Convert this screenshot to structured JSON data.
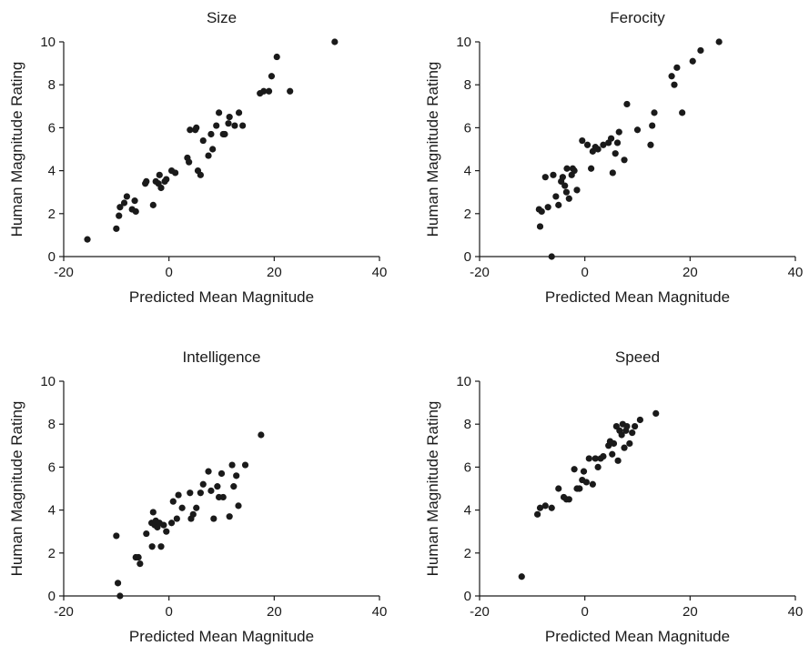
{
  "chart_data": [
    {
      "type": "scatter",
      "title": "Size",
      "xlabel": "Predicted Mean Magnitude",
      "ylabel": "Human Magnitude Rating",
      "xlim": [
        -20,
        40
      ],
      "ylim": [
        0,
        10
      ],
      "xticks": [
        "-20",
        "0",
        "20",
        "40"
      ],
      "yticks": [
        "0",
        "2",
        "4",
        "6",
        "8",
        "10"
      ],
      "grid": false,
      "marker_color": "#1a1a1a",
      "series": [
        {
          "points": [
            [
              -15.5,
              0.8
            ],
            [
              -10,
              1.3
            ],
            [
              -9.5,
              1.9
            ],
            [
              -9.3,
              2.3
            ],
            [
              -8.5,
              2.5
            ],
            [
              -8,
              2.8
            ],
            [
              -7,
              2.2
            ],
            [
              -6.5,
              2.6
            ],
            [
              -6.3,
              2.1
            ],
            [
              -4.5,
              3.4
            ],
            [
              -4.3,
              3.5
            ],
            [
              -3,
              2.4
            ],
            [
              -2.5,
              3.5
            ],
            [
              -2,
              3.4
            ],
            [
              -1.8,
              3.8
            ],
            [
              -1.5,
              3.2
            ],
            [
              -0.8,
              3.5
            ],
            [
              -0.5,
              3.6
            ],
            [
              0.5,
              4.0
            ],
            [
              1.2,
              3.9
            ],
            [
              3.5,
              4.6
            ],
            [
              3.8,
              4.4
            ],
            [
              4,
              5.9
            ],
            [
              5,
              5.9
            ],
            [
              5.2,
              6.0
            ],
            [
              5.5,
              4.0
            ],
            [
              6,
              3.8
            ],
            [
              6.5,
              5.4
            ],
            [
              7.5,
              4.7
            ],
            [
              8,
              5.7
            ],
            [
              8.3,
              5.0
            ],
            [
              9,
              6.1
            ],
            [
              9.5,
              6.7
            ],
            [
              10.3,
              5.7
            ],
            [
              10.6,
              5.7
            ],
            [
              11.3,
              6.2
            ],
            [
              11.5,
              6.5
            ],
            [
              12.5,
              6.1
            ],
            [
              13.3,
              6.7
            ],
            [
              14,
              6.1
            ],
            [
              17.3,
              7.6
            ],
            [
              18,
              7.7
            ],
            [
              19,
              7.7
            ],
            [
              19.5,
              8.4
            ],
            [
              20.5,
              9.3
            ],
            [
              23,
              7.7
            ],
            [
              31.5,
              10.0
            ]
          ]
        }
      ]
    },
    {
      "type": "scatter",
      "title": "Ferocity",
      "xlabel": "Predicted Mean Magnitude",
      "ylabel": "Human Magnitude Rating",
      "xlim": [
        -20,
        40
      ],
      "ylim": [
        0,
        10
      ],
      "xticks": [
        "-20",
        "0",
        "20",
        "40"
      ],
      "yticks": [
        "0",
        "2",
        "4",
        "6",
        "8",
        "10"
      ],
      "grid": false,
      "marker_color": "#1a1a1a",
      "series": [
        {
          "points": [
            [
              -8.7,
              2.2
            ],
            [
              -8.5,
              1.4
            ],
            [
              -8.2,
              2.1
            ],
            [
              -7.5,
              3.7
            ],
            [
              -7,
              2.3
            ],
            [
              -6.3,
              0.0
            ],
            [
              -6,
              3.8
            ],
            [
              -5.5,
              2.8
            ],
            [
              -5,
              2.4
            ],
            [
              -4.5,
              3.5
            ],
            [
              -4.2,
              3.7
            ],
            [
              -3.8,
              3.3
            ],
            [
              -3.5,
              3.0
            ],
            [
              -3.4,
              4.1
            ],
            [
              -3,
              2.7
            ],
            [
              -2.5,
              3.8
            ],
            [
              -2.3,
              4.1
            ],
            [
              -2,
              4.0
            ],
            [
              -1.5,
              3.1
            ],
            [
              -0.5,
              5.4
            ],
            [
              0.5,
              5.2
            ],
            [
              1.2,
              4.1
            ],
            [
              1.5,
              4.9
            ],
            [
              2,
              5.1
            ],
            [
              2.5,
              5.0
            ],
            [
              3.5,
              5.2
            ],
            [
              4.5,
              5.3
            ],
            [
              5,
              5.5
            ],
            [
              5.3,
              3.9
            ],
            [
              5.8,
              4.8
            ],
            [
              6.2,
              5.3
            ],
            [
              6.5,
              5.8
            ],
            [
              7.5,
              4.5
            ],
            [
              8,
              7.1
            ],
            [
              10,
              5.9
            ],
            [
              12.5,
              5.2
            ],
            [
              12.8,
              6.1
            ],
            [
              13.2,
              6.7
            ],
            [
              16.5,
              8.4
            ],
            [
              17,
              8.0
            ],
            [
              17.5,
              8.8
            ],
            [
              18.5,
              6.7
            ],
            [
              20.5,
              9.1
            ],
            [
              22,
              9.6
            ],
            [
              25.5,
              10.0
            ]
          ]
        }
      ]
    },
    {
      "type": "scatter",
      "title": "Intelligence",
      "xlabel": "Predicted Mean Magnitude",
      "ylabel": "Human Magnitude Rating",
      "xlim": [
        -20,
        40
      ],
      "ylim": [
        0,
        10
      ],
      "xticks": [
        "-20",
        "0",
        "20",
        "40"
      ],
      "yticks": [
        "0",
        "2",
        "4",
        "6",
        "8",
        "10"
      ],
      "grid": false,
      "marker_color": "#1a1a1a",
      "series": [
        {
          "points": [
            [
              -10,
              2.8
            ],
            [
              -9.7,
              0.6
            ],
            [
              -9.3,
              0.0
            ],
            [
              -6.3,
              1.8
            ],
            [
              -5.8,
              1.8
            ],
            [
              -5.5,
              1.5
            ],
            [
              -4.3,
              2.9
            ],
            [
              -3.3,
              3.4
            ],
            [
              -3.2,
              2.3
            ],
            [
              -3,
              3.9
            ],
            [
              -2.7,
              3.3
            ],
            [
              -2.5,
              3.5
            ],
            [
              -2.2,
              3.2
            ],
            [
              -1.8,
              3.4
            ],
            [
              -1.5,
              2.3
            ],
            [
              -1,
              3.3
            ],
            [
              -0.5,
              3.0
            ],
            [
              0.5,
              3.4
            ],
            [
              0.8,
              4.4
            ],
            [
              1.5,
              3.6
            ],
            [
              1.8,
              4.7
            ],
            [
              2.5,
              4.1
            ],
            [
              4,
              4.8
            ],
            [
              4.2,
              3.6
            ],
            [
              4.6,
              3.8
            ],
            [
              5.2,
              4.1
            ],
            [
              6,
              4.8
            ],
            [
              6.5,
              5.2
            ],
            [
              7.5,
              5.8
            ],
            [
              8,
              4.9
            ],
            [
              8.5,
              3.6
            ],
            [
              9.2,
              5.1
            ],
            [
              9.5,
              4.6
            ],
            [
              10,
              5.7
            ],
            [
              10.3,
              4.6
            ],
            [
              11.5,
              3.7
            ],
            [
              12,
              6.1
            ],
            [
              12.3,
              5.1
            ],
            [
              12.8,
              5.6
            ],
            [
              13.2,
              4.2
            ],
            [
              14.5,
              6.1
            ],
            [
              17.5,
              7.5
            ]
          ]
        }
      ]
    },
    {
      "type": "scatter",
      "title": "Speed",
      "xlabel": "Predicted Mean Magnitude",
      "ylabel": "Human Magnitude Rating",
      "xlim": [
        -20,
        40
      ],
      "ylim": [
        0,
        10
      ],
      "xticks": [
        "-20",
        "0",
        "20",
        "40"
      ],
      "yticks": [
        "0",
        "2",
        "4",
        "6",
        "8",
        "10"
      ],
      "grid": false,
      "marker_color": "#1a1a1a",
      "series": [
        {
          "points": [
            [
              -12,
              0.9
            ],
            [
              -9,
              3.8
            ],
            [
              -8.5,
              4.1
            ],
            [
              -7.5,
              4.2
            ],
            [
              -6.3,
              4.1
            ],
            [
              -5,
              5.0
            ],
            [
              -4,
              4.6
            ],
            [
              -3.5,
              4.5
            ],
            [
              -3,
              4.5
            ],
            [
              -2,
              5.9
            ],
            [
              -1.5,
              5.0
            ],
            [
              -1,
              5.0
            ],
            [
              -0.5,
              5.4
            ],
            [
              -0.2,
              5.8
            ],
            [
              0.3,
              5.3
            ],
            [
              0.8,
              6.4
            ],
            [
              1.5,
              5.2
            ],
            [
              2,
              6.4
            ],
            [
              2.5,
              6.0
            ],
            [
              3,
              6.4
            ],
            [
              3.5,
              6.5
            ],
            [
              4.5,
              7.0
            ],
            [
              4.8,
              7.2
            ],
            [
              5.2,
              6.6
            ],
            [
              5.5,
              7.1
            ],
            [
              6,
              7.9
            ],
            [
              6.3,
              6.3
            ],
            [
              6.6,
              7.7
            ],
            [
              7,
              7.5
            ],
            [
              7.2,
              8.0
            ],
            [
              7.5,
              6.9
            ],
            [
              7.8,
              7.7
            ],
            [
              8,
              7.9
            ],
            [
              8.5,
              7.1
            ],
            [
              9,
              7.6
            ],
            [
              9.5,
              7.9
            ],
            [
              10.5,
              8.2
            ],
            [
              13.5,
              8.5
            ]
          ]
        }
      ]
    }
  ]
}
